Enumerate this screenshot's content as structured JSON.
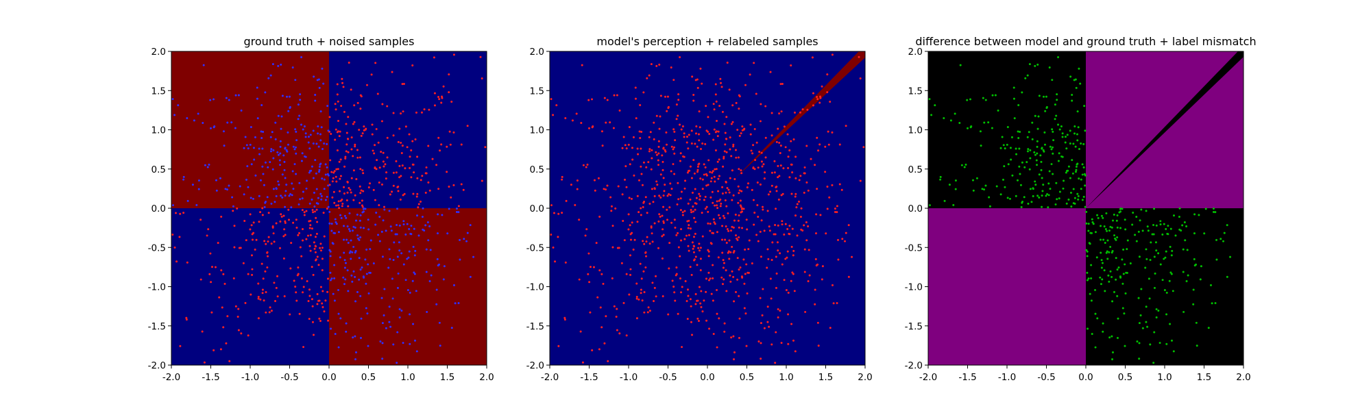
{
  "chart_data": [
    {
      "type": "scatter",
      "title": "ground truth + noised samples",
      "xlim": [
        -2.0,
        2.0
      ],
      "ylim": [
        -2.0,
        2.0
      ],
      "xticks": [
        "-2.0",
        "-1.5",
        "-1.0",
        "-0.5",
        "0.0",
        "0.5",
        "1.0",
        "1.5",
        "2.0"
      ],
      "yticks": [
        "-2.0",
        "-1.5",
        "-1.0",
        "-0.5",
        "0.0",
        "0.5",
        "1.0",
        "1.5",
        "2.0"
      ],
      "grid": false,
      "background": "xor-quadrant-map",
      "colors": {
        "region_a": "#7f0000",
        "region_b": "#00007f",
        "points_red": "#ff2020",
        "points_blue": "#3030ff"
      },
      "series": [
        {
          "color": "#ff2020",
          "rule": "on blue quadrants (x*y>0)",
          "count": 470
        },
        {
          "color": "#3030ff",
          "rule": "on red quadrants (x*y<0)",
          "count": 470
        }
      ]
    },
    {
      "type": "scatter",
      "title": "model's perception + relabeled samples",
      "xlim": [
        -2.0,
        2.0
      ],
      "ylim": [
        -2.0,
        2.0
      ],
      "xticks": [
        "-2.0",
        "-1.5",
        "-1.0",
        "-0.5",
        "0.0",
        "0.5",
        "1.0",
        "1.5",
        "2.0"
      ],
      "yticks": [
        "-2.0",
        "-1.5",
        "-1.0",
        "-0.5",
        "0.0",
        "0.5",
        "1.0",
        "1.5",
        "2.0"
      ],
      "grid": false,
      "background": "blue field with thin red wedge along y=x from about (0.4,0.4) to (2,2)",
      "colors": {
        "region_a": "#7f0000",
        "region_b": "#00007f",
        "points_red": "#ff2020"
      },
      "series": [
        {
          "color": "#ff2020",
          "rule": "all samples",
          "count": 1000
        }
      ]
    },
    {
      "type": "scatter",
      "title": "difference between model and ground truth + label mismatch",
      "xlim": [
        -2.0,
        2.0
      ],
      "ylim": [
        -2.0,
        2.0
      ],
      "xticks": [
        "-2.0",
        "-1.5",
        "-1.0",
        "-0.5",
        "0.0",
        "0.5",
        "1.0",
        "1.5",
        "2.0"
      ],
      "yticks": [
        "-2.0",
        "-1.5",
        "-1.0",
        "-0.5",
        "0.0",
        "0.5",
        "1.0",
        "1.5",
        "2.0"
      ],
      "grid": false,
      "background": "purple where model differs (Q1, Q3), black elsewhere, black wedge along y=x",
      "colors": {
        "region_diff": "#7f007f",
        "region_same": "#000000",
        "points_green": "#00c000"
      },
      "series": [
        {
          "color": "#00c000",
          "rule": "samples in Q2 and Q4",
          "count": 480
        }
      ]
    }
  ]
}
